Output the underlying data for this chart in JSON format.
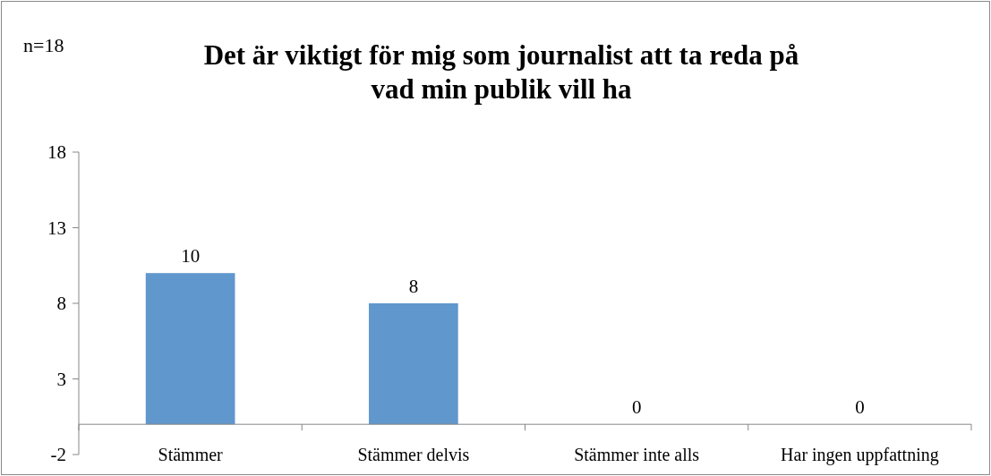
{
  "chart_data": {
    "type": "bar",
    "title": "Det är viktigt för mig som journalist att ta reda på vad min publik vill ha",
    "annotations": [
      "n=18"
    ],
    "categories": [
      "Stämmer",
      "Stämmer delvis",
      "Stämmer inte alls",
      "Har ingen uppfattning"
    ],
    "values": [
      10,
      8,
      0,
      0
    ],
    "color": "#6097cd",
    "ylim": [
      -2,
      18
    ],
    "yticks": [
      -2,
      3,
      8,
      13,
      18
    ],
    "data_labels": true,
    "grid": false
  }
}
